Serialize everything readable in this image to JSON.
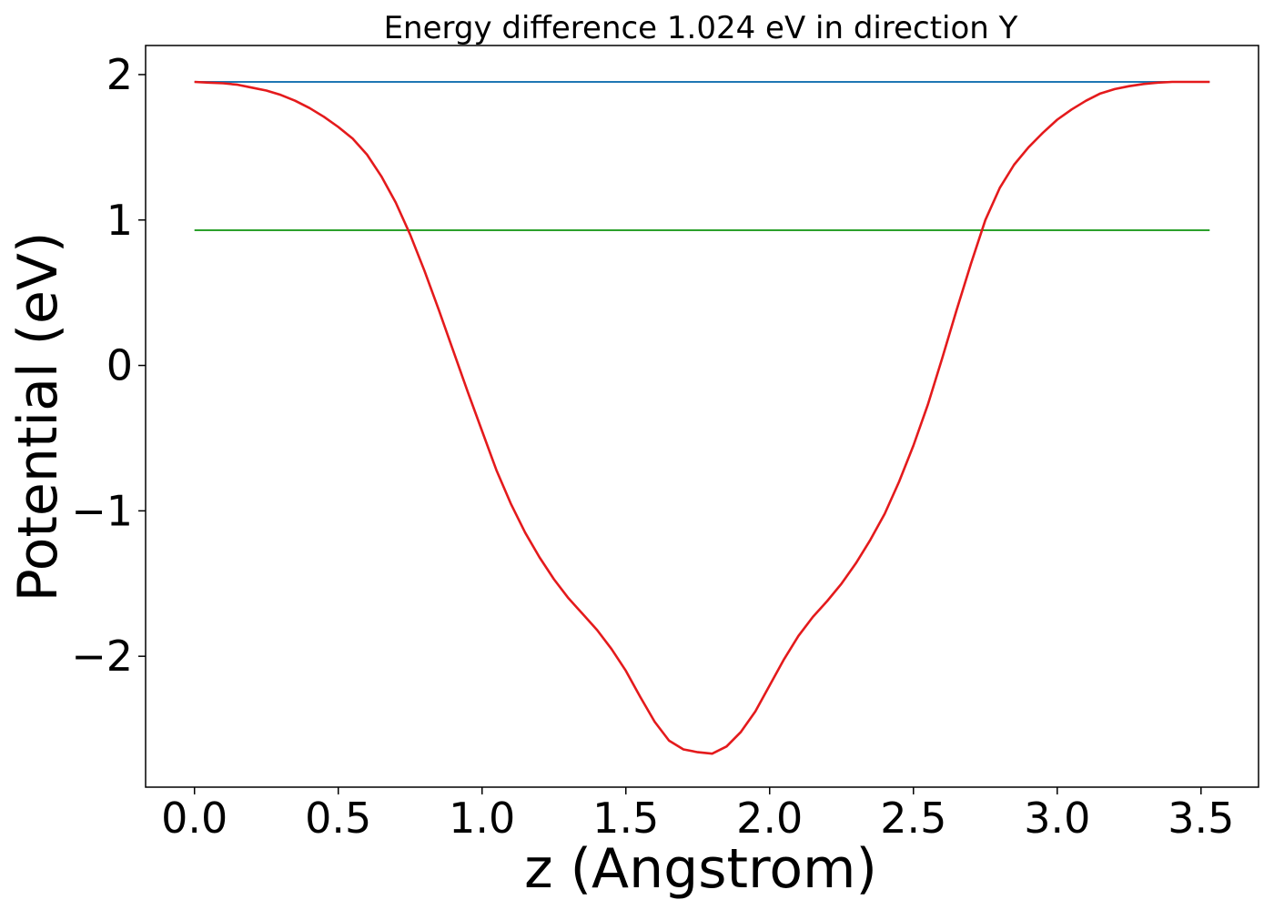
{
  "chart_data": {
    "type": "line",
    "title": "Energy difference 1.024 eV in direction Y",
    "xlabel": "z (Angstrom)",
    "ylabel": "Potential (eV)",
    "xlim": [
      -0.17,
      3.7
    ],
    "ylim": [
      -2.9,
      2.2
    ],
    "x_ticks": [
      0.0,
      0.5,
      1.0,
      1.5,
      2.0,
      2.5,
      3.0,
      3.5
    ],
    "x_tick_labels": [
      "0.0",
      "0.5",
      "1.0",
      "1.5",
      "2.0",
      "2.5",
      "3.0",
      "3.5"
    ],
    "y_ticks": [
      -2,
      -1,
      0,
      1,
      2
    ],
    "y_tick_labels": [
      "−2",
      "−1",
      "0",
      "1",
      "2"
    ],
    "grid": false,
    "series": [
      {
        "color": "#1f77b4",
        "x": [
          0.0,
          3.53
        ],
        "y": [
          1.95,
          1.95
        ]
      },
      {
        "color": "#2ca02c",
        "x": [
          0.0,
          3.53
        ],
        "y": [
          0.93,
          0.93
        ]
      },
      {
        "color": "#e41a1c",
        "x": [
          0.0,
          0.05,
          0.1,
          0.15,
          0.2,
          0.25,
          0.3,
          0.35,
          0.4,
          0.45,
          0.5,
          0.55,
          0.6,
          0.65,
          0.7,
          0.75,
          0.8,
          0.85,
          0.9,
          0.95,
          1.0,
          1.05,
          1.1,
          1.15,
          1.2,
          1.25,
          1.3,
          1.35,
          1.4,
          1.45,
          1.5,
          1.55,
          1.6,
          1.65,
          1.7,
          1.75,
          1.8,
          1.85,
          1.9,
          1.95,
          2.0,
          2.05,
          2.1,
          2.15,
          2.2,
          2.25,
          2.3,
          2.35,
          2.4,
          2.45,
          2.5,
          2.55,
          2.6,
          2.65,
          2.7,
          2.75,
          2.8,
          2.85,
          2.9,
          2.95,
          3.0,
          3.05,
          3.1,
          3.15,
          3.2,
          3.25,
          3.3,
          3.35,
          3.4,
          3.45,
          3.5,
          3.53
        ],
        "y": [
          1.95,
          1.945,
          1.94,
          1.93,
          1.91,
          1.89,
          1.86,
          1.82,
          1.77,
          1.71,
          1.64,
          1.56,
          1.45,
          1.3,
          1.12,
          0.9,
          0.65,
          0.38,
          0.1,
          -0.18,
          -0.45,
          -0.72,
          -0.95,
          -1.15,
          -1.32,
          -1.47,
          -1.6,
          -1.71,
          -1.82,
          -1.95,
          -2.1,
          -2.28,
          -2.45,
          -2.58,
          -2.64,
          -2.66,
          -2.67,
          -2.62,
          -2.52,
          -2.38,
          -2.2,
          -2.02,
          -1.86,
          -1.73,
          -1.62,
          -1.5,
          -1.36,
          -1.2,
          -1.02,
          -0.8,
          -0.55,
          -0.27,
          0.05,
          0.38,
          0.7,
          1.0,
          1.22,
          1.38,
          1.5,
          1.6,
          1.69,
          1.76,
          1.82,
          1.87,
          1.9,
          1.92,
          1.935,
          1.945,
          1.95,
          1.95,
          1.95,
          1.95
        ]
      }
    ]
  }
}
